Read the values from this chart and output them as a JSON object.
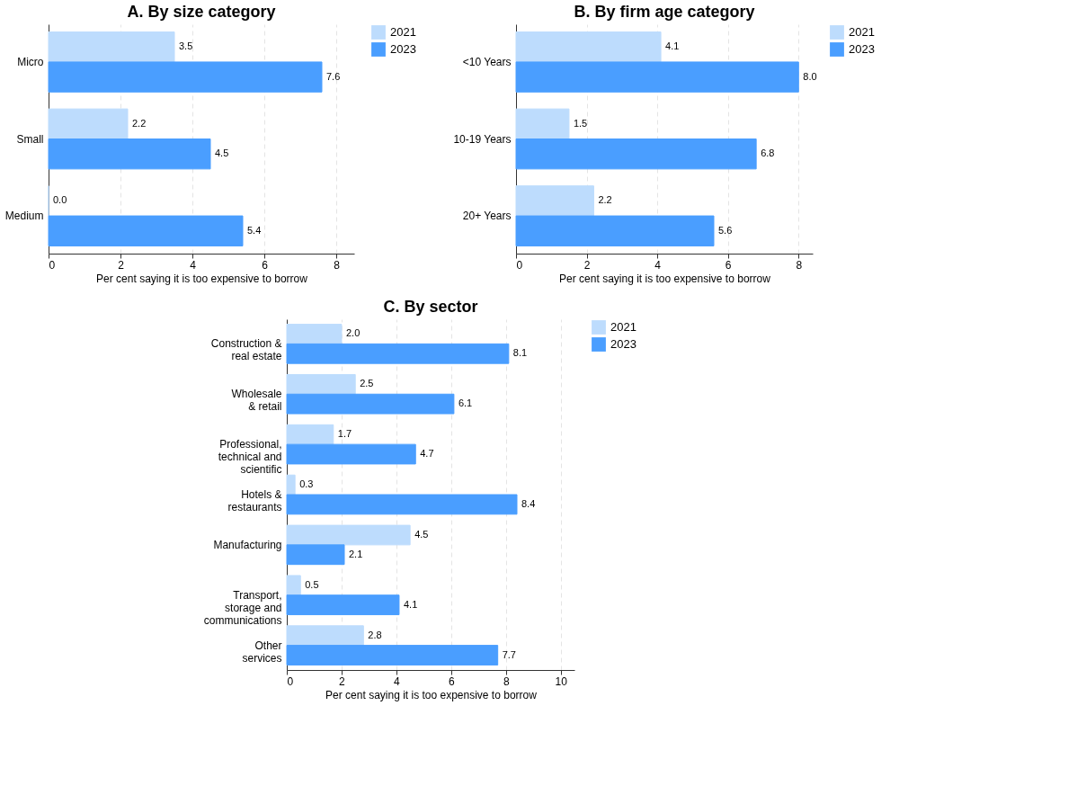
{
  "chart_data": [
    {
      "type": "bar",
      "orientation": "horizontal",
      "title": "A. By size category",
      "xlabel": "Per cent saying it is too expensive to borrow",
      "categories": [
        "Micro",
        "Small",
        "Medium"
      ],
      "series": [
        {
          "name": "2021",
          "color": "#bddcfd",
          "values": [
            3.5,
            2.2,
            0.0
          ],
          "value_labels": [
            "3.5",
            "2.2",
            "0.0"
          ]
        },
        {
          "name": "2023",
          "color": "#4a9eff",
          "values": [
            7.6,
            4.5,
            5.4
          ],
          "value_labels": [
            "7.6",
            "4.5",
            "5.4"
          ]
        }
      ],
      "xlim": [
        0,
        8.5
      ],
      "xticks": [
        0,
        2,
        4,
        6,
        8
      ],
      "grid": "x",
      "legend": "right"
    },
    {
      "type": "bar",
      "orientation": "horizontal",
      "title": "B. By firm age category",
      "xlabel": "Per cent saying it is too expensive to borrow",
      "categories": [
        "<10 Years",
        "10-19 Years",
        "20+ Years"
      ],
      "series": [
        {
          "name": "2021",
          "color": "#bddcfd",
          "values": [
            4.1,
            1.5,
            2.2
          ],
          "value_labels": [
            "4.1",
            "1.5",
            "2.2"
          ]
        },
        {
          "name": "2023",
          "color": "#4a9eff",
          "values": [
            8.0,
            6.8,
            5.6
          ],
          "value_labels": [
            "8.0",
            "6.8",
            "5.6"
          ]
        }
      ],
      "xlim": [
        0,
        8.4
      ],
      "xticks": [
        0,
        2,
        4,
        6,
        8
      ],
      "grid": "x",
      "legend": "right"
    },
    {
      "type": "bar",
      "orientation": "horizontal",
      "title": "C. By sector",
      "xlabel": "Per cent saying it is too expensive to borrow",
      "categories": [
        "Construction &\nreal estate",
        "Wholesale\n& retail",
        "Professional,\ntechnical and\nscientific",
        "Hotels &\nrestaurants",
        "Manufacturing",
        "Transport,\nstorage and\ncommunications",
        "Other\nservices"
      ],
      "series": [
        {
          "name": "2021",
          "color": "#bddcfd",
          "values": [
            2.0,
            2.5,
            1.7,
            0.3,
            4.5,
            0.5,
            2.8
          ],
          "value_labels": [
            "2.0",
            "2.5",
            "1.7",
            "0.3",
            "4.5",
            "0.5",
            "2.8"
          ]
        },
        {
          "name": "2023",
          "color": "#4a9eff",
          "values": [
            8.1,
            6.1,
            4.7,
            8.4,
            2.1,
            4.1,
            7.7
          ],
          "value_labels": [
            "8.1",
            "6.1",
            "4.7",
            "8.4",
            "2.1",
            "4.1",
            "7.7"
          ]
        }
      ],
      "xlim": [
        0,
        10.5
      ],
      "xticks": [
        0,
        2,
        4,
        6,
        8,
        10
      ],
      "grid": "x",
      "legend": "right"
    }
  ]
}
